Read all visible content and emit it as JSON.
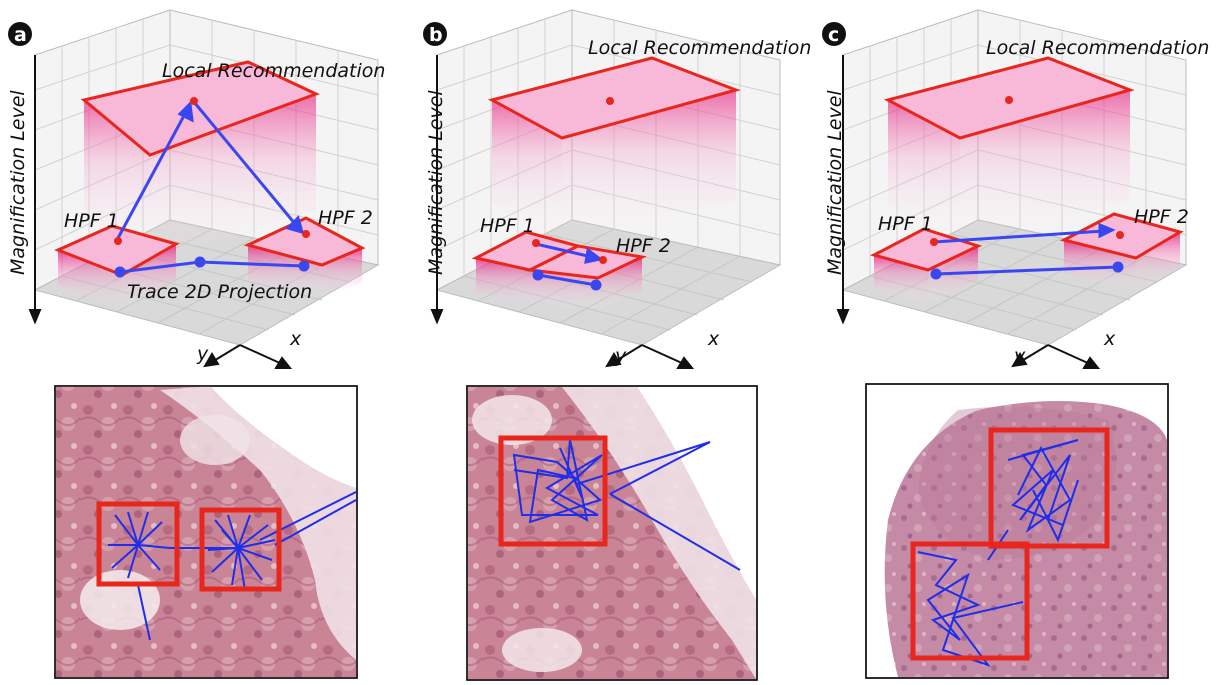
{
  "panels": [
    {
      "badge": "a",
      "ylabel": "Magnification Level",
      "x_axis": "x",
      "y_axis": "y",
      "top_label": "Local Recommendation",
      "hpf1_label": "HPF 1",
      "hpf2_label": "HPF 2",
      "projection_label": "Trace 2D Projection"
    },
    {
      "badge": "b",
      "ylabel": "Magnification Level",
      "x_axis": "x",
      "y_axis": "y",
      "top_label": "Local Recommendation",
      "hpf1_label": "HPF 1",
      "hpf2_label": "HPF 2"
    },
    {
      "badge": "c",
      "ylabel": "Magnification Level",
      "x_axis": "x",
      "y_axis": "y",
      "top_label": "Local Recommendation",
      "hpf1_label": "HPF 1",
      "hpf2_label": "HPF 2"
    }
  ],
  "colors": {
    "highlight": "#e8261c",
    "trace": "#1f2ee8",
    "plane_fill": "#f6a9cf",
    "tissue": "#c97b91",
    "floor": "#d9d9d9"
  }
}
